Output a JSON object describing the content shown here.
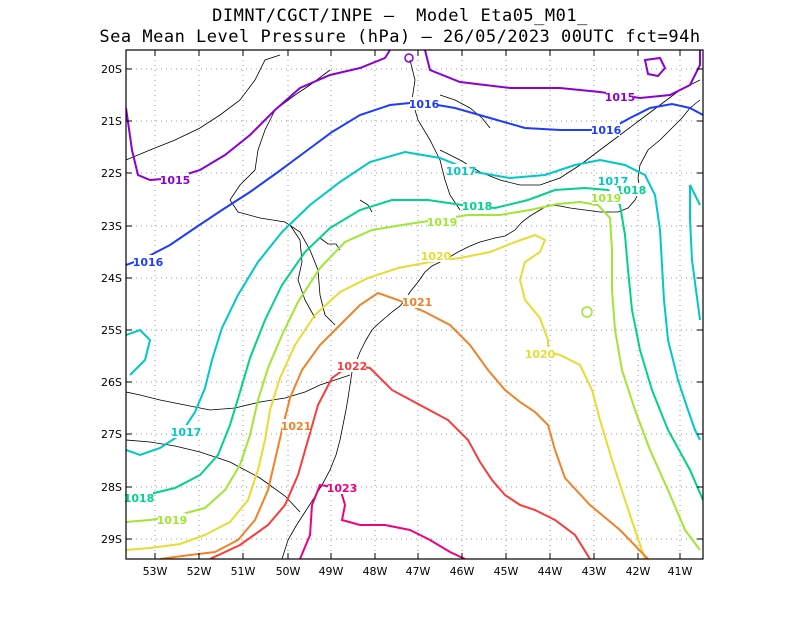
{
  "title_line1": "DIMNT/CGCT/INPE –  Model Eta05_M01_",
  "title_line2": "Sea Mean Level Pressure (hPa) – 26/05/2023 00UTC fct=94h",
  "lat_ticks": [
    "20S",
    "21S",
    "22S",
    "23S",
    "24S",
    "25S",
    "26S",
    "27S",
    "28S",
    "29S"
  ],
  "lon_ticks": [
    "53W",
    "52W",
    "51W",
    "50W",
    "49W",
    "48W",
    "47W",
    "46W",
    "45W",
    "44W",
    "43W",
    "42W",
    "41W"
  ],
  "colors": {
    "1015": "#8c00d4",
    "1016": "#1e3cff",
    "1017": "#00c8c8",
    "1018": "#00d28c",
    "1019": "#a0e632",
    "1020": "#e6dc32",
    "1021": "#f08228",
    "1022": "#fa3c3c",
    "1023": "#f00082",
    "grid": "#999999",
    "coast": "#000000"
  },
  "contour_labels": [
    {
      "text": "1015",
      "level": "1015"
    },
    {
      "text": "1015",
      "level": "1015"
    },
    {
      "text": "1016",
      "level": "1016"
    },
    {
      "text": "1016",
      "level": "1016"
    },
    {
      "text": "1016",
      "level": "1016"
    },
    {
      "text": "1017",
      "level": "1017"
    },
    {
      "text": "1017",
      "level": "1017"
    },
    {
      "text": "1017",
      "level": "1017"
    },
    {
      "text": "1018",
      "level": "1018"
    },
    {
      "text": "1018",
      "level": "1018"
    },
    {
      "text": "1018",
      "level": "1018"
    },
    {
      "text": "1019",
      "level": "1019"
    },
    {
      "text": "1019",
      "level": "1019"
    },
    {
      "text": "1019",
      "level": "1019"
    },
    {
      "text": "1020",
      "level": "1020"
    },
    {
      "text": "1020",
      "level": "1020"
    },
    {
      "text": "1021",
      "level": "1021"
    },
    {
      "text": "1021",
      "level": "1021"
    },
    {
      "text": "1022",
      "level": "1022"
    },
    {
      "text": "1023",
      "level": "1023"
    }
  ]
}
